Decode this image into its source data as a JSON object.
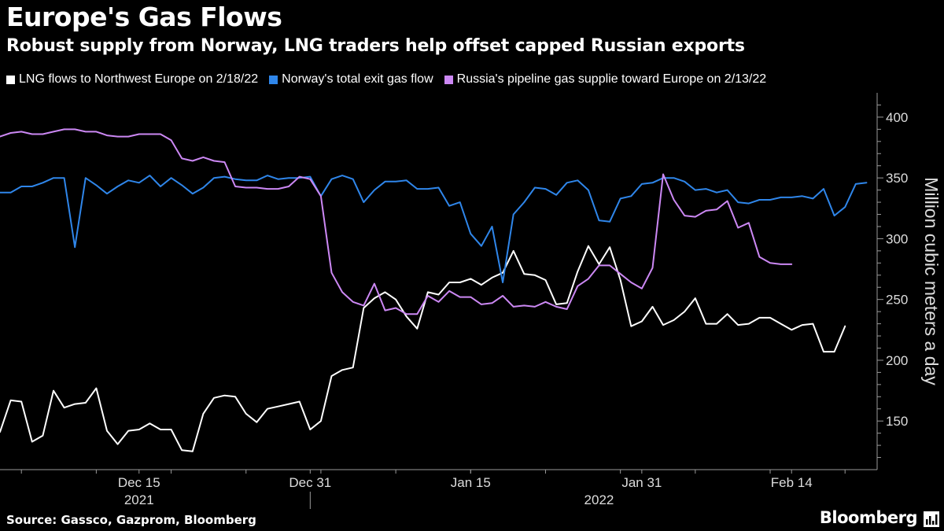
{
  "header": {
    "title": "Europe's Gas Flows",
    "subtitle": "Robust supply from Norway, LNG traders help offset capped Russian exports"
  },
  "footer": {
    "source": "Source: Gassco, Gazprom, Bloomberg",
    "brand": "Bloomberg"
  },
  "icons": {
    "brand": "bloomberg-chart-icon"
  },
  "chart_data": {
    "type": "line",
    "title": "Europe's Gas Flows",
    "ylabel": "Million cubic meters a day",
    "ylim": [
      110,
      420
    ],
    "yticks": [
      150,
      200,
      250,
      300,
      350,
      400
    ],
    "grid": false,
    "legend_position": "top-left",
    "x_range": [
      "2021-12-02",
      "2022-02-22"
    ],
    "x_ticks": [
      {
        "date": "2021-12-15",
        "label": "Dec 15"
      },
      {
        "date": "2021-12-31",
        "label": "Dec 31"
      },
      {
        "date": "2022-01-15",
        "label": "Jan 15"
      },
      {
        "date": "2022-01-31",
        "label": "Jan 31"
      },
      {
        "date": "2022-02-14",
        "label": "Feb 14"
      }
    ],
    "year_labels": [
      {
        "date": "2021-12-15",
        "label": "2021"
      },
      {
        "date": "2022-01-27",
        "label": "2022"
      }
    ],
    "series": [
      {
        "name": "LNG flows to Northwest Europe on 2/18/22",
        "color": "#ffffff",
        "points": [
          [
            "2021-12-02",
            141
          ],
          [
            "2021-12-03",
            167
          ],
          [
            "2021-12-04",
            166
          ],
          [
            "2021-12-05",
            133
          ],
          [
            "2021-12-06",
            138
          ],
          [
            "2021-12-07",
            175
          ],
          [
            "2021-12-08",
            161
          ],
          [
            "2021-12-09",
            164
          ],
          [
            "2021-12-10",
            165
          ],
          [
            "2021-12-11",
            177
          ],
          [
            "2021-12-12",
            142
          ],
          [
            "2021-12-13",
            131
          ],
          [
            "2021-12-14",
            142
          ],
          [
            "2021-12-15",
            143
          ],
          [
            "2021-12-16",
            148
          ],
          [
            "2021-12-17",
            143
          ],
          [
            "2021-12-18",
            143
          ],
          [
            "2021-12-19",
            126
          ],
          [
            "2021-12-20",
            125
          ],
          [
            "2021-12-21",
            156
          ],
          [
            "2021-12-22",
            169
          ],
          [
            "2021-12-23",
            171
          ],
          [
            "2021-12-24",
            170
          ],
          [
            "2021-12-25",
            156
          ],
          [
            "2021-12-26",
            149
          ],
          [
            "2021-12-27",
            160
          ],
          [
            "2021-12-28",
            162
          ],
          [
            "2021-12-29",
            164
          ],
          [
            "2021-12-30",
            166
          ],
          [
            "2021-12-31",
            143
          ],
          [
            "2022-01-01",
            150
          ],
          [
            "2022-01-02",
            187
          ],
          [
            "2022-01-03",
            192
          ],
          [
            "2022-01-04",
            194
          ],
          [
            "2022-01-05",
            243
          ],
          [
            "2022-01-06",
            251
          ],
          [
            "2022-01-07",
            256
          ],
          [
            "2022-01-08",
            250
          ],
          [
            "2022-01-09",
            236
          ],
          [
            "2022-01-10",
            226
          ],
          [
            "2022-01-11",
            256
          ],
          [
            "2022-01-12",
            254
          ],
          [
            "2022-01-13",
            264
          ],
          [
            "2022-01-14",
            264
          ],
          [
            "2022-01-15",
            267
          ],
          [
            "2022-01-16",
            262
          ],
          [
            "2022-01-17",
            268
          ],
          [
            "2022-01-18",
            272
          ],
          [
            "2022-01-19",
            290
          ],
          [
            "2022-01-20",
            271
          ],
          [
            "2022-01-21",
            270
          ],
          [
            "2022-01-22",
            266
          ],
          [
            "2022-01-23",
            246
          ],
          [
            "2022-01-24",
            247
          ],
          [
            "2022-01-25",
            273
          ],
          [
            "2022-01-26",
            294
          ],
          [
            "2022-01-27",
            279
          ],
          [
            "2022-01-28",
            293
          ],
          [
            "2022-01-29",
            266
          ],
          [
            "2022-01-30",
            228
          ],
          [
            "2022-01-31",
            232
          ],
          [
            "2022-02-01",
            244
          ],
          [
            "2022-02-02",
            229
          ],
          [
            "2022-02-03",
            233
          ],
          [
            "2022-02-04",
            240
          ],
          [
            "2022-02-05",
            251
          ],
          [
            "2022-02-06",
            230
          ],
          [
            "2022-02-07",
            230
          ],
          [
            "2022-02-08",
            238
          ],
          [
            "2022-02-09",
            229
          ],
          [
            "2022-02-10",
            230
          ],
          [
            "2022-02-11",
            235
          ],
          [
            "2022-02-12",
            235
          ],
          [
            "2022-02-13",
            230
          ],
          [
            "2022-02-14",
            225
          ],
          [
            "2022-02-15",
            229
          ],
          [
            "2022-02-16",
            230
          ],
          [
            "2022-02-17",
            207
          ],
          [
            "2022-02-18",
            207
          ],
          [
            "2022-02-19",
            228
          ]
        ]
      },
      {
        "name": "Norway's total exit gas flow",
        "color": "#2f86ea",
        "points": [
          [
            "2021-12-02",
            338
          ],
          [
            "2021-12-03",
            338
          ],
          [
            "2021-12-04",
            343
          ],
          [
            "2021-12-05",
            343
          ],
          [
            "2021-12-06",
            346
          ],
          [
            "2021-12-07",
            350
          ],
          [
            "2021-12-08",
            350
          ],
          [
            "2021-12-09",
            293
          ],
          [
            "2021-12-10",
            350
          ],
          [
            "2021-12-11",
            344
          ],
          [
            "2021-12-12",
            337
          ],
          [
            "2021-12-13",
            343
          ],
          [
            "2021-12-14",
            348
          ],
          [
            "2021-12-15",
            346
          ],
          [
            "2021-12-16",
            352
          ],
          [
            "2021-12-17",
            343
          ],
          [
            "2021-12-18",
            350
          ],
          [
            "2021-12-19",
            344
          ],
          [
            "2021-12-20",
            337
          ],
          [
            "2021-12-21",
            342
          ],
          [
            "2021-12-22",
            350
          ],
          [
            "2021-12-23",
            351
          ],
          [
            "2021-12-24",
            349
          ],
          [
            "2021-12-25",
            348
          ],
          [
            "2021-12-26",
            348
          ],
          [
            "2021-12-27",
            352
          ],
          [
            "2021-12-28",
            349
          ],
          [
            "2021-12-29",
            350
          ],
          [
            "2021-12-30",
            350
          ],
          [
            "2021-12-31",
            351
          ],
          [
            "2022-01-01",
            335
          ],
          [
            "2022-01-02",
            349
          ],
          [
            "2022-01-03",
            352
          ],
          [
            "2022-01-04",
            349
          ],
          [
            "2022-01-05",
            330
          ],
          [
            "2022-01-06",
            340
          ],
          [
            "2022-01-07",
            347
          ],
          [
            "2022-01-08",
            347
          ],
          [
            "2022-01-09",
            348
          ],
          [
            "2022-01-10",
            341
          ],
          [
            "2022-01-11",
            341
          ],
          [
            "2022-01-12",
            342
          ],
          [
            "2022-01-13",
            327
          ],
          [
            "2022-01-14",
            330
          ],
          [
            "2022-01-15",
            304
          ],
          [
            "2022-01-16",
            294
          ],
          [
            "2022-01-17",
            310
          ],
          [
            "2022-01-18",
            264
          ],
          [
            "2022-01-19",
            320
          ],
          [
            "2022-01-20",
            330
          ],
          [
            "2022-01-21",
            342
          ],
          [
            "2022-01-22",
            341
          ],
          [
            "2022-01-23",
            336
          ],
          [
            "2022-01-24",
            346
          ],
          [
            "2022-01-25",
            348
          ],
          [
            "2022-01-26",
            340
          ],
          [
            "2022-01-27",
            315
          ],
          [
            "2022-01-28",
            314
          ],
          [
            "2022-01-29",
            333
          ],
          [
            "2022-01-30",
            335
          ],
          [
            "2022-01-31",
            345
          ],
          [
            "2022-02-01",
            346
          ],
          [
            "2022-02-02",
            350
          ],
          [
            "2022-02-03",
            350
          ],
          [
            "2022-02-04",
            347
          ],
          [
            "2022-02-05",
            340
          ],
          [
            "2022-02-06",
            341
          ],
          [
            "2022-02-07",
            338
          ],
          [
            "2022-02-08",
            340
          ],
          [
            "2022-02-09",
            330
          ],
          [
            "2022-02-10",
            329
          ],
          [
            "2022-02-11",
            332
          ],
          [
            "2022-02-12",
            332
          ],
          [
            "2022-02-13",
            334
          ],
          [
            "2022-02-14",
            334
          ],
          [
            "2022-02-15",
            335
          ],
          [
            "2022-02-16",
            333
          ],
          [
            "2022-02-17",
            341
          ],
          [
            "2022-02-18",
            319
          ],
          [
            "2022-02-19",
            326
          ],
          [
            "2022-02-20",
            345
          ],
          [
            "2022-02-21",
            346
          ]
        ]
      },
      {
        "name": "Russia's pipeline gas supplie toward Europe on 2/13/22",
        "color": "#cc88f4",
        "points": [
          [
            "2021-12-02",
            384
          ],
          [
            "2021-12-03",
            387
          ],
          [
            "2021-12-04",
            388
          ],
          [
            "2021-12-05",
            386
          ],
          [
            "2021-12-06",
            386
          ],
          [
            "2021-12-07",
            388
          ],
          [
            "2021-12-08",
            390
          ],
          [
            "2021-12-09",
            390
          ],
          [
            "2021-12-10",
            388
          ],
          [
            "2021-12-11",
            388
          ],
          [
            "2021-12-12",
            385
          ],
          [
            "2021-12-13",
            384
          ],
          [
            "2021-12-14",
            384
          ],
          [
            "2021-12-15",
            386
          ],
          [
            "2021-12-16",
            386
          ],
          [
            "2021-12-17",
            386
          ],
          [
            "2021-12-18",
            381
          ],
          [
            "2021-12-19",
            366
          ],
          [
            "2021-12-20",
            364
          ],
          [
            "2021-12-21",
            367
          ],
          [
            "2021-12-22",
            364
          ],
          [
            "2021-12-23",
            363
          ],
          [
            "2021-12-24",
            343
          ],
          [
            "2021-12-25",
            342
          ],
          [
            "2021-12-26",
            342
          ],
          [
            "2021-12-27",
            341
          ],
          [
            "2021-12-28",
            341
          ],
          [
            "2021-12-29",
            343
          ],
          [
            "2021-12-30",
            351
          ],
          [
            "2021-12-31",
            349
          ],
          [
            "2022-01-01",
            335
          ],
          [
            "2022-01-02",
            272
          ],
          [
            "2022-01-03",
            256
          ],
          [
            "2022-01-04",
            248
          ],
          [
            "2022-01-05",
            245
          ],
          [
            "2022-01-06",
            263
          ],
          [
            "2022-01-07",
            241
          ],
          [
            "2022-01-08",
            243
          ],
          [
            "2022-01-09",
            238
          ],
          [
            "2022-01-10",
            238
          ],
          [
            "2022-01-11",
            253
          ],
          [
            "2022-01-12",
            248
          ],
          [
            "2022-01-13",
            257
          ],
          [
            "2022-01-14",
            252
          ],
          [
            "2022-01-15",
            252
          ],
          [
            "2022-01-16",
            246
          ],
          [
            "2022-01-17",
            247
          ],
          [
            "2022-01-18",
            253
          ],
          [
            "2022-01-19",
            244
          ],
          [
            "2022-01-20",
            245
          ],
          [
            "2022-01-21",
            244
          ],
          [
            "2022-01-22",
            248
          ],
          [
            "2022-01-23",
            244
          ],
          [
            "2022-01-24",
            242
          ],
          [
            "2022-01-25",
            261
          ],
          [
            "2022-01-26",
            267
          ],
          [
            "2022-01-27",
            278
          ],
          [
            "2022-01-28",
            278
          ],
          [
            "2022-01-29",
            271
          ],
          [
            "2022-01-30",
            264
          ],
          [
            "2022-01-31",
            259
          ],
          [
            "2022-02-01",
            276
          ],
          [
            "2022-02-02",
            353
          ],
          [
            "2022-02-03",
            332
          ],
          [
            "2022-02-04",
            319
          ],
          [
            "2022-02-05",
            318
          ],
          [
            "2022-02-06",
            323
          ],
          [
            "2022-02-07",
            324
          ],
          [
            "2022-02-08",
            331
          ],
          [
            "2022-02-09",
            309
          ],
          [
            "2022-02-10",
            313
          ],
          [
            "2022-02-11",
            285
          ],
          [
            "2022-02-12",
            280
          ],
          [
            "2022-02-13",
            279
          ],
          [
            "2022-02-14",
            279
          ]
        ]
      }
    ]
  }
}
